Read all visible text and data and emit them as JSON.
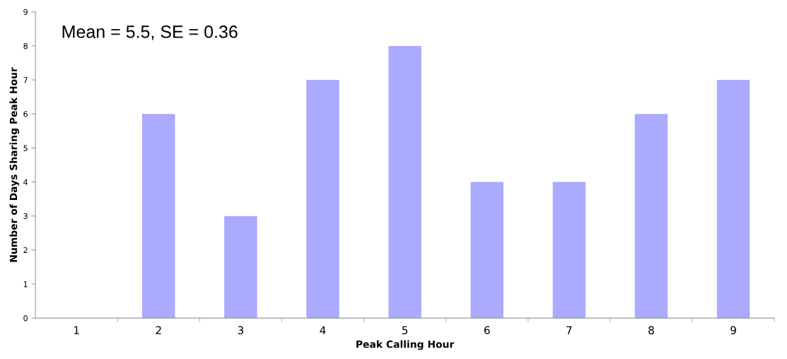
{
  "chart_data": {
    "type": "bar",
    "xlabel": "Peak Calling Hour",
    "ylabel": "Number of Days Sharing Peak Hour",
    "categories": [
      "1",
      "2",
      "3",
      "4",
      "5",
      "6",
      "7",
      "8",
      "9"
    ],
    "values": [
      0,
      6,
      3,
      7,
      8,
      4,
      4,
      6,
      7
    ],
    "color": "#aaaaff",
    "ylim": [
      0,
      9
    ],
    "yticks": [
      0,
      1,
      2,
      3,
      4,
      5,
      6,
      7,
      8,
      9
    ],
    "grid": false,
    "legend": false,
    "annotations": [
      "Mean = 5.5, SE = 0.36"
    ]
  }
}
